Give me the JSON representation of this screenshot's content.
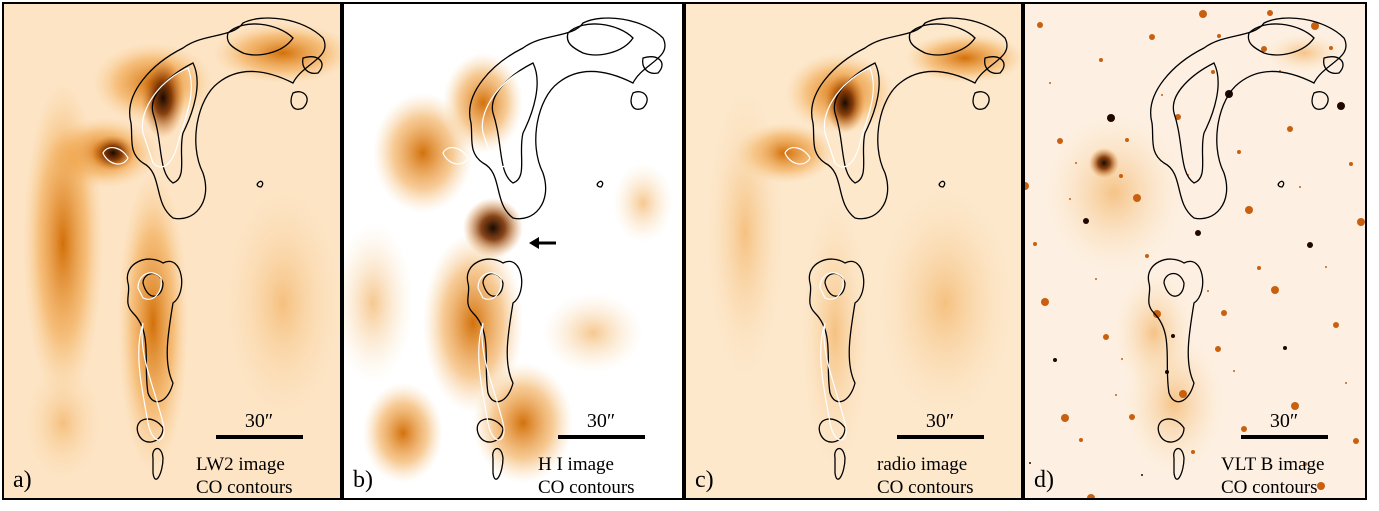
{
  "panels": [
    {
      "label": "a)",
      "scale_bar": "30″",
      "caption": [
        "LW2 image",
        "CO contours"
      ]
    },
    {
      "label": "b)",
      "scale_bar": "30″",
      "caption": [
        "H I image",
        "CO contours"
      ]
    },
    {
      "label": "c)",
      "scale_bar": "30″",
      "caption": [
        "radio image",
        "CO contours"
      ]
    },
    {
      "label": "d)",
      "scale_bar": "30″",
      "caption": [
        "VLT B image",
        "CO contours"
      ]
    }
  ]
}
